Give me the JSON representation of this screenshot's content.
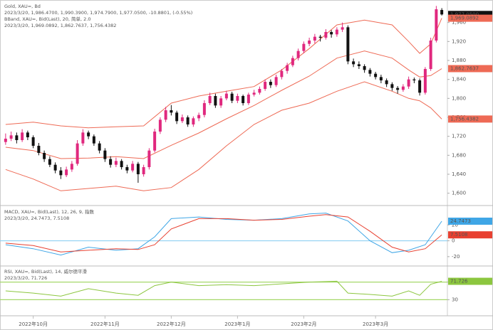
{
  "chart_data": [
    {
      "type": "candlestick",
      "title": "Gold, XAU=, Bd",
      "subtitle": "2023/3/20, 1,986.4700, 1,990.3900, 1,974.7900, 1,977.0500, -10.8801, (-0.55%)",
      "annotations": [
        {
          "text": "BBand, XAU=, Bid(Last), 20, 简单, 2.0",
          "color": "#e84030"
        },
        {
          "text": "2023/3/20, 1,969.0892, 1,862.7637, 1,756.4382",
          "color": "#e84030"
        }
      ],
      "up_color": "#e0287e",
      "down_color": "#111111",
      "last_label": "1,977.0500",
      "tag_color": "#111111",
      "ylim": [
        1580,
        2000
      ],
      "yticks": [
        {
          "value": 1600,
          "label": "1,600"
        },
        {
          "value": 1640,
          "label": "1,640"
        },
        {
          "value": 1680,
          "label": "1,680"
        },
        {
          "value": 1720,
          "label": "1,720"
        },
        {
          "value": 1760,
          "label": "1,760"
        },
        {
          "value": 1800,
          "label": "1,800"
        },
        {
          "value": 1840,
          "label": "1,840"
        },
        {
          "value": 1880,
          "label": "1,880"
        },
        {
          "value": 1920,
          "label": "1,920"
        },
        {
          "value": 1960,
          "label": "1,960"
        }
      ],
      "categories": [
        null,
        null,
        null,
        null,
        null,
        "2022年10月",
        null,
        null,
        null,
        null,
        null,
        null,
        null,
        null,
        null,
        null,
        null,
        null,
        "2022年11月",
        null,
        null,
        null,
        null,
        null,
        null,
        null,
        null,
        null,
        null,
        null,
        "2022年12月",
        null,
        null,
        null,
        null,
        null,
        null,
        null,
        null,
        null,
        null,
        null,
        "2023年1月",
        null,
        null,
        null,
        null,
        null,
        null,
        null,
        null,
        null,
        null,
        null,
        "2023年2月",
        null,
        null,
        null,
        null,
        null,
        null,
        null,
        null,
        null,
        null,
        null,
        null,
        "2023年3月",
        null,
        null,
        null,
        null,
        null,
        null,
        null,
        null,
        null,
        null,
        null,
        null
      ],
      "ohlc": [
        [
          1708,
          1726,
          1702,
          1715
        ],
        [
          1715,
          1730,
          1710,
          1722
        ],
        [
          1722,
          1728,
          1705,
          1712
        ],
        [
          1712,
          1735,
          1708,
          1728
        ],
        [
          1728,
          1732,
          1712,
          1718
        ],
        [
          1718,
          1722,
          1695,
          1700
        ],
        [
          1700,
          1706,
          1680,
          1685
        ],
        [
          1685,
          1690,
          1666,
          1672
        ],
        [
          1672,
          1678,
          1655,
          1660
        ],
        [
          1660,
          1665,
          1642,
          1648
        ],
        [
          1648,
          1655,
          1630,
          1638
        ],
        [
          1638,
          1656,
          1634,
          1650
        ],
        [
          1650,
          1668,
          1645,
          1662
        ],
        [
          1662,
          1712,
          1658,
          1705
        ],
        [
          1705,
          1735,
          1700,
          1728
        ],
        [
          1728,
          1732,
          1714,
          1720
        ],
        [
          1720,
          1724,
          1700,
          1705
        ],
        [
          1705,
          1710,
          1684,
          1690
        ],
        [
          1690,
          1695,
          1666,
          1672
        ],
        [
          1672,
          1678,
          1654,
          1660
        ],
        [
          1660,
          1675,
          1655,
          1668
        ],
        [
          1668,
          1672,
          1650,
          1655
        ],
        [
          1655,
          1660,
          1642,
          1648
        ],
        [
          1648,
          1668,
          1644,
          1662
        ],
        [
          1662,
          1666,
          1622,
          1640
        ],
        [
          1640,
          1660,
          1635,
          1655
        ],
        [
          1655,
          1695,
          1650,
          1690
        ],
        [
          1690,
          1736,
          1686,
          1730
        ],
        [
          1730,
          1760,
          1725,
          1755
        ],
        [
          1755,
          1782,
          1750,
          1775
        ],
        [
          1775,
          1786,
          1764,
          1770
        ],
        [
          1770,
          1774,
          1746,
          1752
        ],
        [
          1752,
          1766,
          1748,
          1760
        ],
        [
          1760,
          1764,
          1740,
          1745
        ],
        [
          1745,
          1762,
          1740,
          1758
        ],
        [
          1758,
          1770,
          1752,
          1765
        ],
        [
          1765,
          1796,
          1760,
          1790
        ],
        [
          1790,
          1812,
          1786,
          1805
        ],
        [
          1805,
          1810,
          1780,
          1785
        ],
        [
          1785,
          1805,
          1780,
          1800
        ],
        [
          1800,
          1816,
          1796,
          1810
        ],
        [
          1810,
          1814,
          1790,
          1795
        ],
        [
          1795,
          1810,
          1790,
          1805
        ],
        [
          1805,
          1808,
          1785,
          1790
        ],
        [
          1790,
          1812,
          1786,
          1808
        ],
        [
          1808,
          1818,
          1804,
          1812
        ],
        [
          1812,
          1825,
          1808,
          1820
        ],
        [
          1820,
          1840,
          1816,
          1835
        ],
        [
          1835,
          1840,
          1822,
          1828
        ],
        [
          1828,
          1850,
          1824,
          1845
        ],
        [
          1845,
          1862,
          1840,
          1858
        ],
        [
          1858,
          1875,
          1852,
          1870
        ],
        [
          1870,
          1890,
          1866,
          1885
        ],
        [
          1885,
          1905,
          1880,
          1900
        ],
        [
          1900,
          1920,
          1895,
          1915
        ],
        [
          1915,
          1928,
          1910,
          1922
        ],
        [
          1922,
          1936,
          1916,
          1930
        ],
        [
          1930,
          1934,
          1920,
          1928
        ],
        [
          1928,
          1946,
          1924,
          1940
        ],
        [
          1940,
          1944,
          1928,
          1935
        ],
        [
          1935,
          1950,
          1930,
          1945
        ],
        [
          1945,
          1960,
          1940,
          1950
        ],
        [
          1950,
          1954,
          1872,
          1878
        ],
        [
          1878,
          1884,
          1866,
          1872
        ],
        [
          1872,
          1878,
          1862,
          1868
        ],
        [
          1868,
          1872,
          1854,
          1860
        ],
        [
          1860,
          1864,
          1846,
          1852
        ],
        [
          1852,
          1856,
          1840,
          1845
        ],
        [
          1845,
          1850,
          1832,
          1838
        ],
        [
          1838,
          1842,
          1824,
          1830
        ],
        [
          1830,
          1834,
          1816,
          1822
        ],
        [
          1822,
          1826,
          1810,
          1818
        ],
        [
          1818,
          1830,
          1814,
          1825
        ],
        [
          1825,
          1846,
          1820,
          1840
        ],
        [
          1840,
          1844,
          1832,
          1838
        ],
        [
          1838,
          1842,
          1806,
          1812
        ],
        [
          1812,
          1866,
          1808,
          1862
        ],
        [
          1862,
          1928,
          1858,
          1922
        ],
        [
          1922,
          1995,
          1918,
          1987.93
        ],
        [
          1986.47,
          1990.39,
          1974.79,
          1977.05
        ]
      ],
      "lines": [
        {
          "color": "#ee6a55",
          "value_label": "1,969.0892",
          "x": [
            0,
            5,
            10,
            15,
            20,
            25,
            30,
            35,
            40,
            45,
            50,
            55,
            60,
            65,
            70,
            73,
            75,
            77,
            79
          ],
          "values": [
            1745,
            1750,
            1742,
            1738,
            1740,
            1742,
            1790,
            1805,
            1815,
            1825,
            1860,
            1905,
            1955,
            1965,
            1955,
            1920,
            1895,
            1915,
            1969.0892
          ]
        },
        {
          "color": "#ee6a55",
          "value_label": "1,862.7637",
          "x": [
            0,
            5,
            10,
            15,
            20,
            25,
            30,
            35,
            40,
            45,
            50,
            55,
            60,
            65,
            70,
            73,
            75,
            77,
            79
          ],
          "values": [
            1697,
            1690,
            1673,
            1674,
            1677,
            1673,
            1701,
            1727,
            1757,
            1785,
            1817,
            1847,
            1885,
            1900,
            1885,
            1860,
            1845,
            1848,
            1862.7637
          ]
        },
        {
          "color": "#ee6a55",
          "value_label": "1,756.4382",
          "x": [
            0,
            5,
            10,
            15,
            20,
            25,
            30,
            35,
            40,
            45,
            50,
            55,
            60,
            65,
            70,
            73,
            75,
            77,
            79
          ],
          "values": [
            1650,
            1630,
            1605,
            1610,
            1615,
            1605,
            1612,
            1650,
            1700,
            1745,
            1775,
            1790,
            1815,
            1835,
            1815,
            1800,
            1795,
            1780,
            1756.4382
          ]
        }
      ]
    },
    {
      "type": "line",
      "title": "MACD, XAU=, Bid(Last), 12, 26, 9, 指数",
      "subtitle": "2023/3/20, 24.7473, 7.5108",
      "text_color": "#3a9ad9",
      "ylim": [
        -30,
        40
      ],
      "yticks": [
        -20,
        0,
        20
      ],
      "hlines": [
        0
      ],
      "hline_color": "#8fd0f2",
      "lines": [
        {
          "color": "#3fa6e6",
          "x": [
            0,
            5,
            10,
            15,
            20,
            24,
            27,
            30,
            35,
            40,
            45,
            50,
            55,
            58,
            62,
            66,
            70,
            73,
            76,
            79
          ],
          "values": [
            -5,
            -10,
            -18,
            -8,
            -12,
            -10,
            5,
            28,
            30,
            27,
            26,
            28,
            34,
            35,
            25,
            0,
            -15,
            -12,
            -5,
            24.7473
          ]
        },
        {
          "color": "#e84030",
          "x": [
            0,
            5,
            10,
            15,
            20,
            24,
            27,
            30,
            35,
            40,
            45,
            50,
            55,
            58,
            62,
            66,
            70,
            73,
            76,
            79
          ],
          "values": [
            -3,
            -6,
            -14,
            -12,
            -10,
            -11,
            -5,
            15,
            28,
            28,
            26,
            27,
            31,
            33,
            30,
            12,
            -8,
            -14,
            -10,
            7.5108
          ]
        }
      ]
    },
    {
      "type": "line",
      "title": "RSI, XAU=, Bid(Last), 14, 威尔德平滑",
      "subtitle": "2023/3/20, 71.726",
      "text_color": "#6aa82a",
      "ylim": [
        0,
        100
      ],
      "yticks": [
        30,
        70
      ],
      "hlines": [
        30,
        70
      ],
      "hline_color": "#a6d86a",
      "lines": [
        {
          "color": "#8cc63f",
          "x": [
            0,
            5,
            10,
            15,
            20,
            24,
            27,
            30,
            35,
            40,
            45,
            50,
            55,
            60,
            62,
            66,
            70,
            73,
            75,
            77,
            79
          ],
          "values": [
            50,
            45,
            38,
            55,
            45,
            40,
            62,
            70,
            62,
            64,
            62,
            66,
            70,
            72,
            45,
            42,
            38,
            50,
            40,
            65,
            71.726
          ]
        }
      ]
    }
  ]
}
